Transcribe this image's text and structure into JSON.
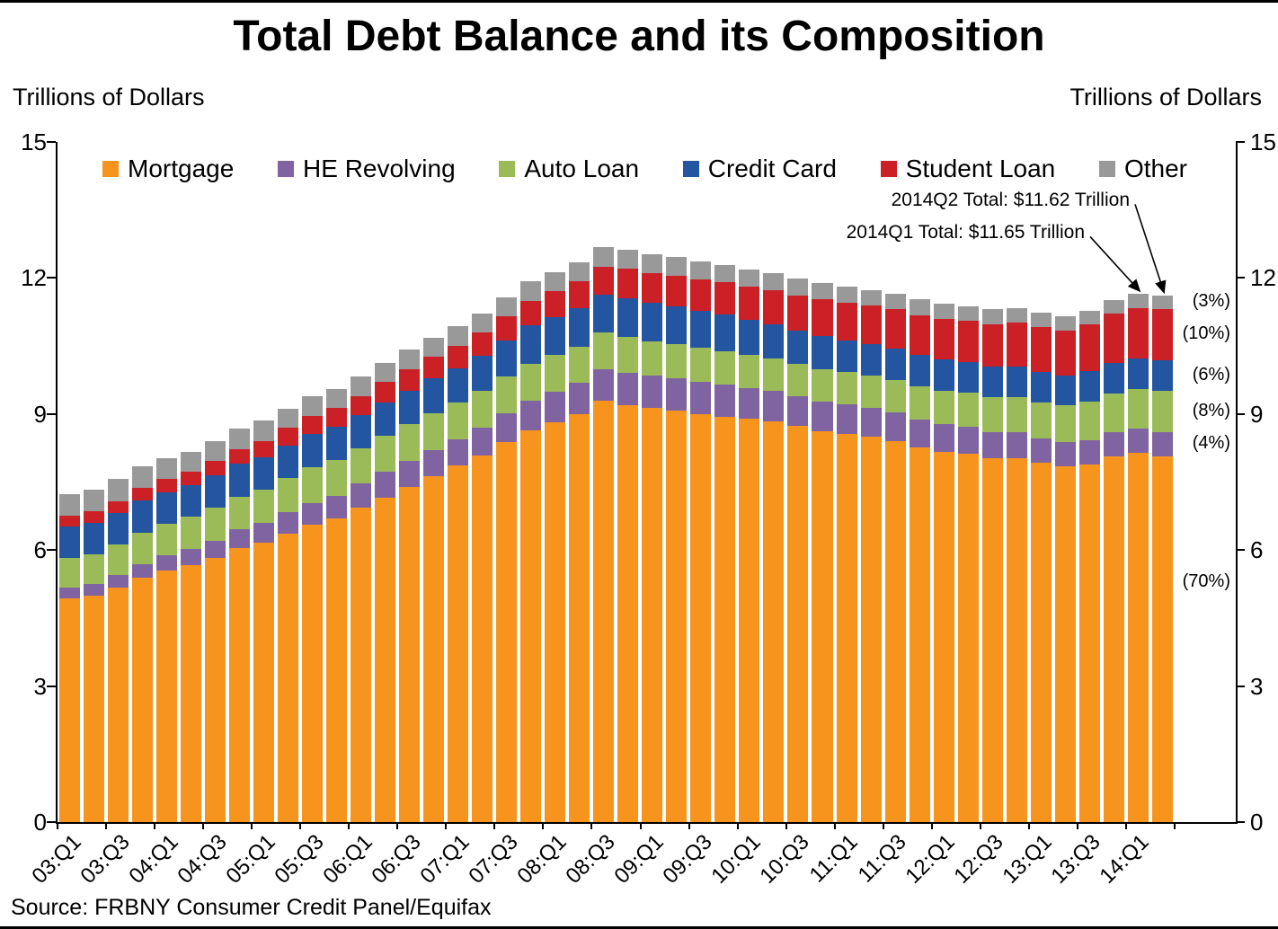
{
  "page": {
    "title": "Total Debt Balance and its Composition",
    "left_axis_caption": "Trillions of Dollars",
    "right_axis_caption": "Trillions of Dollars",
    "source": "Source: FRBNY Consumer Credit Panel/Equifax"
  },
  "annotations": [
    {
      "text": "2014Q2 Total: $11.62 Trillion",
      "points_to": "14:Q2"
    },
    {
      "text": "2014Q1 Total: $11.65 Trillion",
      "points_to": "14:Q1"
    }
  ],
  "chart_data": {
    "type": "bar",
    "stacked": true,
    "title": "Total Debt Balance and its Composition",
    "ylabel_left": "Trillions of Dollars",
    "ylabel_right": "Trillions of Dollars",
    "ylim": [
      0,
      15
    ],
    "yticks": [
      0,
      3,
      6,
      9,
      12,
      15
    ],
    "legend_position": "top-inside",
    "grid": false,
    "x": [
      "03:Q1",
      "03:Q2",
      "03:Q3",
      "03:Q4",
      "04:Q1",
      "04:Q2",
      "04:Q3",
      "04:Q4",
      "05:Q1",
      "05:Q2",
      "05:Q3",
      "05:Q4",
      "06:Q1",
      "06:Q2",
      "06:Q3",
      "06:Q4",
      "07:Q1",
      "07:Q2",
      "07:Q3",
      "07:Q4",
      "08:Q1",
      "08:Q2",
      "08:Q3",
      "08:Q4",
      "09:Q1",
      "09:Q2",
      "09:Q3",
      "09:Q4",
      "10:Q1",
      "10:Q2",
      "10:Q3",
      "10:Q4",
      "11:Q1",
      "11:Q2",
      "11:Q3",
      "11:Q4",
      "12:Q1",
      "12:Q2",
      "12:Q3",
      "12:Q4",
      "13:Q1",
      "13:Q2",
      "13:Q3",
      "13:Q4",
      "14:Q1",
      "14:Q2"
    ],
    "x_ticks": [
      {
        "bar": 0,
        "label": "03:Q1"
      },
      {
        "bar": 2,
        "label": "03:Q3"
      },
      {
        "bar": 4,
        "label": "04:Q1"
      },
      {
        "bar": 6,
        "label": "04:Q3"
      },
      {
        "bar": 8,
        "label": "05:Q1"
      },
      {
        "bar": 10,
        "label": "05:Q3"
      },
      {
        "bar": 12,
        "label": "06:Q1"
      },
      {
        "bar": 14,
        "label": "06:Q3"
      },
      {
        "bar": 16,
        "label": "07:Q1"
      },
      {
        "bar": 18,
        "label": "07:Q3"
      },
      {
        "bar": 20,
        "label": "08:Q1"
      },
      {
        "bar": 22,
        "label": "08:Q3"
      },
      {
        "bar": 24,
        "label": "09:Q1"
      },
      {
        "bar": 26,
        "label": "09:Q3"
      },
      {
        "bar": 28,
        "label": "10:Q1"
      },
      {
        "bar": 30,
        "label": "10:Q3"
      },
      {
        "bar": 32,
        "label": "11:Q1"
      },
      {
        "bar": 34,
        "label": "11:Q3"
      },
      {
        "bar": 36,
        "label": "12:Q1"
      },
      {
        "bar": 38,
        "label": "12:Q3"
      },
      {
        "bar": 40,
        "label": "13:Q1"
      },
      {
        "bar": 42,
        "label": "13:Q3"
      },
      {
        "bar": 44,
        "label": "14:Q1"
      }
    ],
    "series": [
      {
        "id": "mortgage",
        "label": "Mortgage",
        "color": "#F7941E",
        "pct_label": "(70%)",
        "values": [
          4.94,
          4.99,
          5.17,
          5.38,
          5.55,
          5.67,
          5.82,
          6.04,
          6.16,
          6.36,
          6.55,
          6.69,
          6.93,
          7.16,
          7.4,
          7.62,
          7.86,
          8.09,
          8.38,
          8.64,
          8.82,
          9.0,
          9.29,
          9.19,
          9.13,
          9.08,
          9.0,
          8.94,
          8.89,
          8.84,
          8.73,
          8.62,
          8.56,
          8.5,
          8.4,
          8.26,
          8.17,
          8.13,
          8.03,
          8.03,
          7.92,
          7.84,
          7.88,
          8.06,
          8.15,
          8.07
        ]
      },
      {
        "id": "he-revolving",
        "label": "HE Revolving",
        "color": "#8064A2",
        "pct_label": "(4%)",
        "values": [
          0.24,
          0.26,
          0.27,
          0.3,
          0.33,
          0.35,
          0.38,
          0.41,
          0.44,
          0.47,
          0.49,
          0.51,
          0.53,
          0.56,
          0.57,
          0.58,
          0.59,
          0.61,
          0.63,
          0.65,
          0.67,
          0.68,
          0.69,
          0.71,
          0.71,
          0.71,
          0.71,
          0.7,
          0.69,
          0.68,
          0.67,
          0.66,
          0.65,
          0.64,
          0.63,
          0.62,
          0.61,
          0.59,
          0.57,
          0.56,
          0.55,
          0.54,
          0.54,
          0.53,
          0.53,
          0.53
        ]
      },
      {
        "id": "auto-loan",
        "label": "Auto Loan",
        "color": "#9BBB59",
        "pct_label": "(8%)",
        "values": [
          0.64,
          0.66,
          0.69,
          0.7,
          0.7,
          0.71,
          0.73,
          0.73,
          0.74,
          0.76,
          0.79,
          0.79,
          0.79,
          0.8,
          0.81,
          0.82,
          0.81,
          0.81,
          0.82,
          0.82,
          0.82,
          0.81,
          0.81,
          0.79,
          0.77,
          0.76,
          0.75,
          0.74,
          0.72,
          0.71,
          0.71,
          0.71,
          0.71,
          0.71,
          0.72,
          0.73,
          0.74,
          0.75,
          0.77,
          0.78,
          0.79,
          0.81,
          0.85,
          0.86,
          0.88,
          0.92
        ]
      },
      {
        "id": "credit-card",
        "label": "Credit Card",
        "color": "#2355A0",
        "pct_label": "(6%)",
        "values": [
          0.69,
          0.69,
          0.69,
          0.72,
          0.7,
          0.7,
          0.71,
          0.72,
          0.71,
          0.72,
          0.74,
          0.73,
          0.72,
          0.73,
          0.74,
          0.76,
          0.75,
          0.77,
          0.79,
          0.84,
          0.82,
          0.84,
          0.85,
          0.87,
          0.84,
          0.82,
          0.81,
          0.81,
          0.77,
          0.74,
          0.73,
          0.73,
          0.7,
          0.69,
          0.69,
          0.7,
          0.68,
          0.67,
          0.67,
          0.68,
          0.66,
          0.66,
          0.67,
          0.68,
          0.66,
          0.67
        ]
      },
      {
        "id": "student-loan",
        "label": "Student Loan",
        "color": "#CC2027",
        "pct_label": "(10%)",
        "values": [
          0.24,
          0.25,
          0.26,
          0.27,
          0.29,
          0.3,
          0.32,
          0.33,
          0.36,
          0.38,
          0.39,
          0.41,
          0.43,
          0.45,
          0.47,
          0.48,
          0.5,
          0.52,
          0.53,
          0.55,
          0.58,
          0.59,
          0.61,
          0.64,
          0.66,
          0.68,
          0.69,
          0.71,
          0.74,
          0.76,
          0.78,
          0.81,
          0.84,
          0.85,
          0.87,
          0.87,
          0.9,
          0.91,
          0.94,
          0.97,
          0.99,
          0.99,
          1.03,
          1.08,
          1.11,
          1.12
        ]
      },
      {
        "id": "other",
        "label": "Other",
        "color": "#999999",
        "pct_label": "(3%)",
        "values": [
          0.48,
          0.49,
          0.48,
          0.47,
          0.45,
          0.44,
          0.45,
          0.45,
          0.44,
          0.43,
          0.44,
          0.43,
          0.43,
          0.43,
          0.44,
          0.43,
          0.42,
          0.42,
          0.43,
          0.42,
          0.42,
          0.42,
          0.43,
          0.43,
          0.42,
          0.41,
          0.4,
          0.39,
          0.38,
          0.37,
          0.37,
          0.36,
          0.35,
          0.35,
          0.35,
          0.35,
          0.34,
          0.33,
          0.33,
          0.32,
          0.32,
          0.31,
          0.31,
          0.31,
          0.32,
          0.31
        ]
      }
    ]
  }
}
